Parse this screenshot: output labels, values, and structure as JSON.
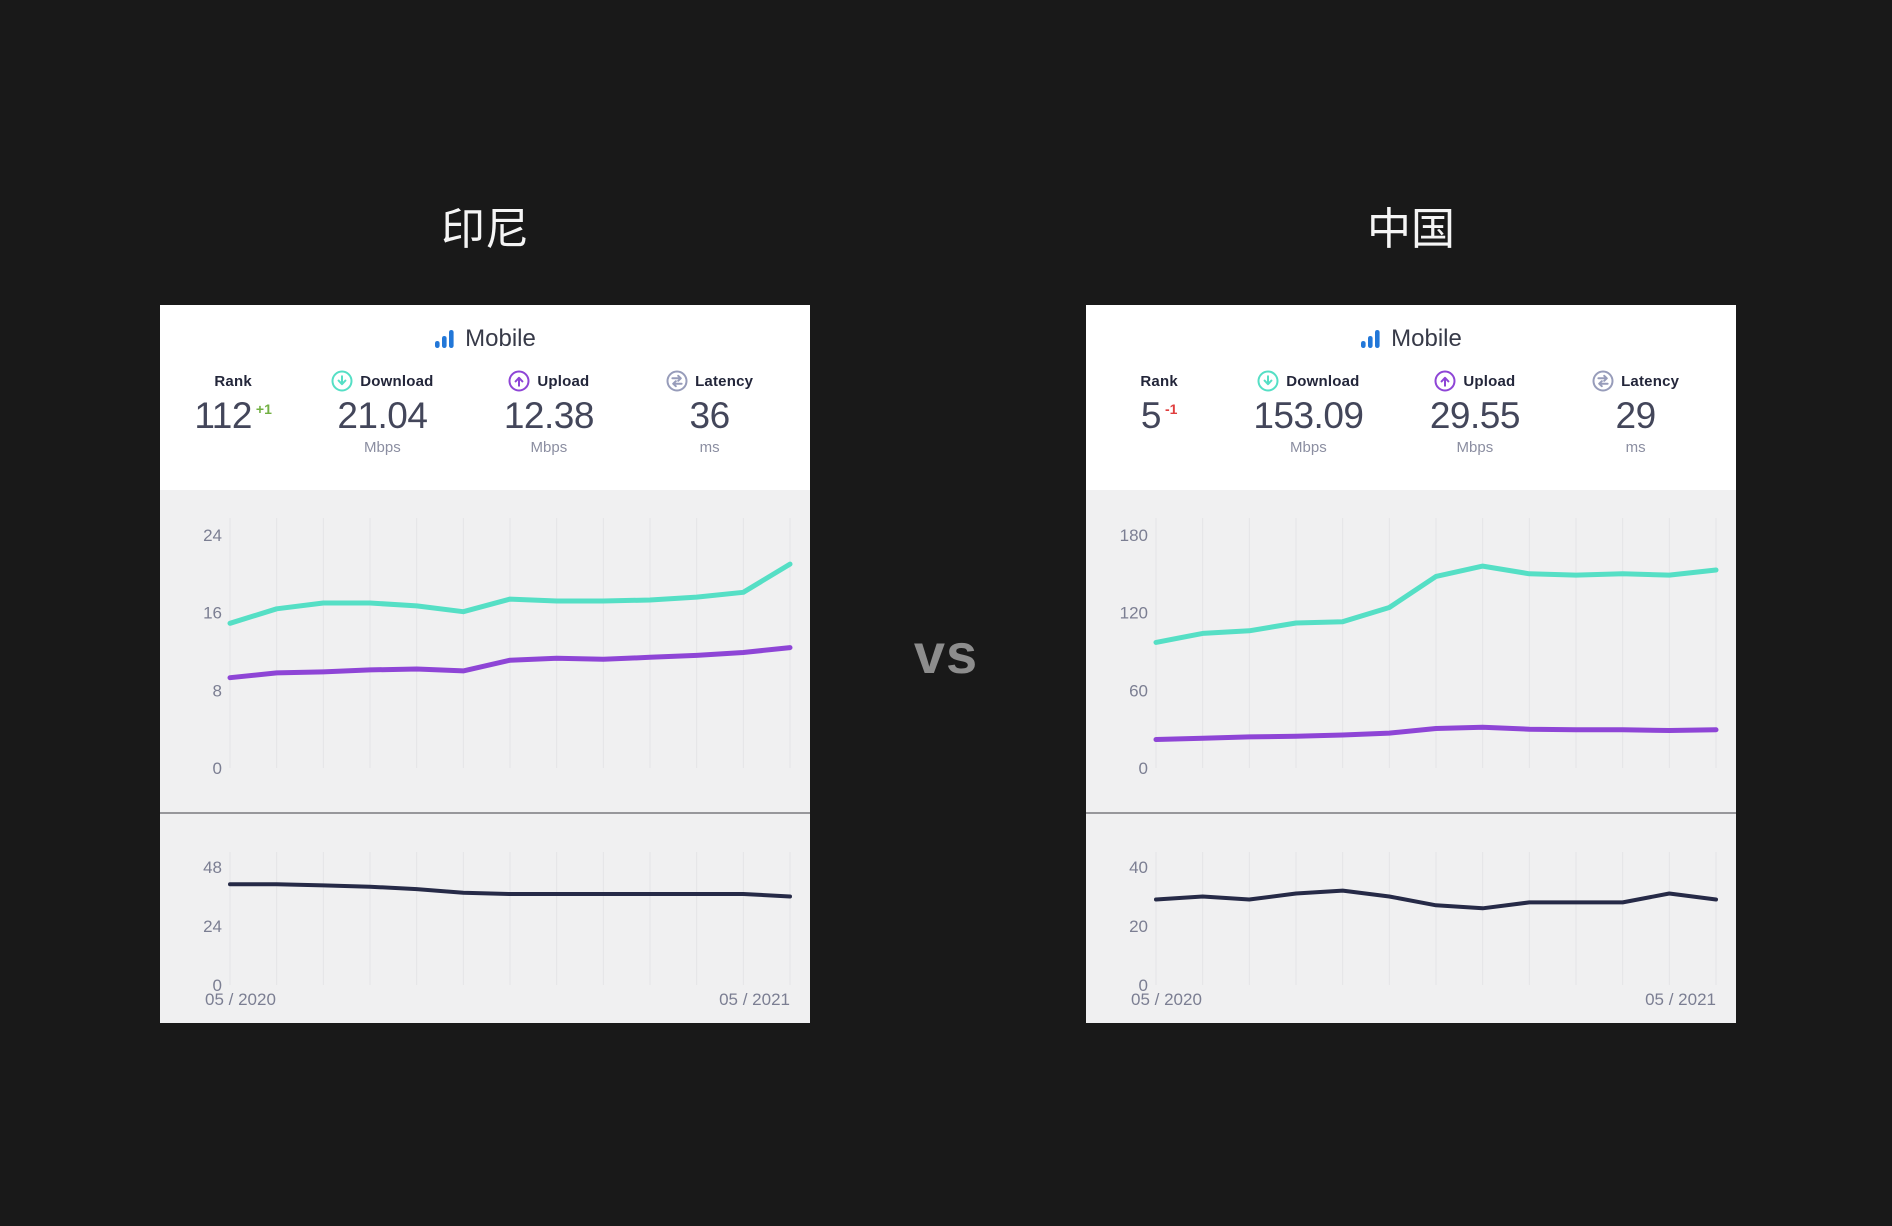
{
  "page": {
    "vs_label": "vs"
  },
  "colors": {
    "page_bg": "#191919",
    "card_bg": "#ffffff",
    "chart_bg": "#f0f0f1",
    "download_teal": "#55dfc5",
    "upload_purple": "#8e45d6",
    "latency_navy": "#262a47",
    "mobile_blue": "#2277d8",
    "delta_up_green": "#72b043",
    "delta_down_red": "#e03e3e",
    "axis_text": "#7b7e92",
    "vs_grey": "#8d8d8d"
  },
  "cards": [
    {
      "title": "印尼",
      "header": {
        "label": "Mobile"
      },
      "stats": {
        "rank": {
          "label": "Rank",
          "value": "112",
          "delta": "+1",
          "delta_color": "#72b043"
        },
        "download": {
          "label": "Download",
          "value": "21.04",
          "unit": "Mbps"
        },
        "upload": {
          "label": "Upload",
          "value": "12.38",
          "unit": "Mbps"
        },
        "latency": {
          "label": "Latency",
          "value": "36",
          "unit": "ms"
        }
      },
      "x_axis": {
        "start": "05 / 2020",
        "end": "05 / 2021"
      }
    },
    {
      "title": "中国",
      "header": {
        "label": "Mobile"
      },
      "stats": {
        "rank": {
          "label": "Rank",
          "value": "5",
          "delta": "-1",
          "delta_color": "#e03e3e"
        },
        "download": {
          "label": "Download",
          "value": "153.09",
          "unit": "Mbps"
        },
        "upload": {
          "label": "Upload",
          "value": "29.55",
          "unit": "Mbps"
        },
        "latency": {
          "label": "Latency",
          "value": "29",
          "unit": "ms"
        }
      },
      "x_axis": {
        "start": "05 / 2020",
        "end": "05 / 2021"
      }
    }
  ],
  "chart_data": [
    {
      "id": "indonesia-speeds",
      "type": "line",
      "x_range": [
        "05 / 2020",
        "05 / 2021"
      ],
      "x_points": "13 monthly samples",
      "ylim": [
        0,
        24
      ],
      "yticks": [
        24,
        16,
        8,
        0
      ],
      "grid": "vertical-monthly",
      "legend": "none",
      "series": [
        {
          "name": "Download (Mbps)",
          "color": "#55dfc5",
          "values": [
            14.9,
            16.4,
            17.0,
            17.0,
            16.7,
            16.1,
            17.4,
            17.2,
            17.2,
            17.3,
            17.6,
            18.1,
            21.0
          ]
        },
        {
          "name": "Upload (Mbps)",
          "color": "#8e45d6",
          "values": [
            9.3,
            9.8,
            9.9,
            10.1,
            10.2,
            10.0,
            11.1,
            11.3,
            11.2,
            11.4,
            11.6,
            11.9,
            12.4
          ]
        }
      ]
    },
    {
      "id": "indonesia-latency",
      "type": "line",
      "x_range": [
        "05 / 2020",
        "05 / 2021"
      ],
      "x_points": "13 monthly samples",
      "ylim": [
        0,
        48
      ],
      "yticks": [
        48,
        24,
        0
      ],
      "grid": "vertical-monthly",
      "legend": "none",
      "series": [
        {
          "name": "Latency (ms)",
          "color": "#262a47",
          "values": [
            41,
            41,
            40.5,
            40,
            39,
            37.5,
            37,
            37,
            37,
            37,
            37,
            37,
            36
          ]
        }
      ]
    },
    {
      "id": "china-speeds",
      "type": "line",
      "x_range": [
        "05 / 2020",
        "05 / 2021"
      ],
      "x_points": "13 monthly samples",
      "ylim": [
        0,
        180
      ],
      "yticks": [
        180,
        120,
        60,
        0
      ],
      "grid": "vertical-monthly",
      "legend": "none",
      "series": [
        {
          "name": "Download (Mbps)",
          "color": "#55dfc5",
          "values": [
            97,
            104,
            106,
            112,
            113,
            124,
            148,
            156,
            150,
            149,
            150,
            149,
            153
          ]
        },
        {
          "name": "Upload (Mbps)",
          "color": "#8e45d6",
          "values": [
            22,
            23,
            24,
            24.5,
            25.5,
            27,
            30.5,
            31.5,
            30,
            29.5,
            29.5,
            29,
            29.5
          ]
        }
      ]
    },
    {
      "id": "china-latency",
      "type": "line",
      "x_range": [
        "05 / 2020",
        "05 / 2021"
      ],
      "x_points": "13 monthly samples",
      "ylim": [
        0,
        40
      ],
      "yticks": [
        40,
        20,
        0
      ],
      "grid": "vertical-monthly",
      "legend": "none",
      "series": [
        {
          "name": "Latency (ms)",
          "color": "#262a47",
          "values": [
            29,
            30,
            29,
            31,
            32,
            30,
            27,
            26,
            28,
            28,
            28,
            31,
            29
          ]
        }
      ]
    }
  ]
}
